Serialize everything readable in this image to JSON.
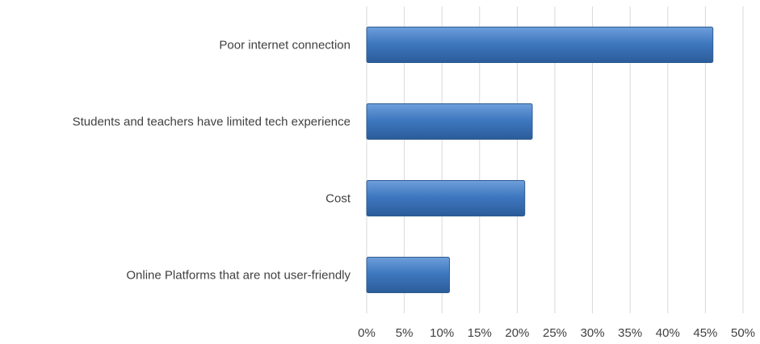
{
  "chart_data": {
    "type": "bar",
    "orientation": "horizontal",
    "categories": [
      "Poor internet connection",
      "Students and teachers have limited tech experience",
      "Cost",
      "Online Platforms that are not user-friendly"
    ],
    "values": [
      46,
      22,
      21,
      11
    ],
    "unit": "%",
    "xlim": [
      0,
      50
    ],
    "x_ticks": [
      "0%",
      "5%",
      "10%",
      "15%",
      "20%",
      "25%",
      "30%",
      "35%",
      "40%",
      "45%",
      "50%"
    ],
    "grid": "vertical",
    "legend": "none",
    "colors": {
      "bar": "#3f78c0",
      "bar_light": "#6f9fdb",
      "bar_dark": "#2b5c9a",
      "grid": "#d9d9d9",
      "text": "#404040"
    }
  }
}
